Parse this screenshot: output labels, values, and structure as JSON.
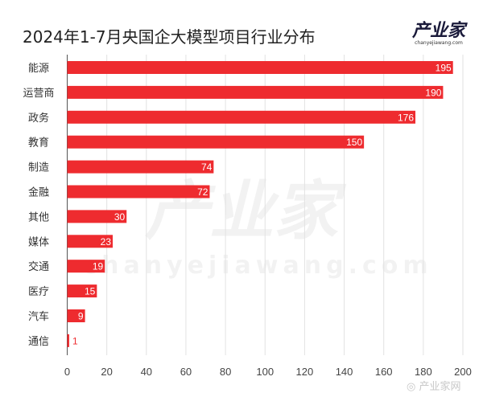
{
  "title": "2024年1-7月央国企大模型项目行业分布",
  "logo": {
    "main": "产业家",
    "sub": "chanyejiawang.com"
  },
  "watermark": {
    "main": "产业家",
    "sub": "chanyejiawang.com",
    "weibo": "产业家网"
  },
  "colors": {
    "bar": "#ee2b2f",
    "grid": "#e2e2e2",
    "label": "#333333"
  },
  "chart_data": {
    "type": "bar",
    "orientation": "horizontal",
    "title": "2024年1-7月央国企大模型项目行业分布",
    "categories": [
      "能源",
      "运营商",
      "政务",
      "教育",
      "制造",
      "金融",
      "其他",
      "媒体",
      "交通",
      "医疗",
      "汽车",
      "通信"
    ],
    "values": [
      195,
      190,
      176,
      150,
      74,
      72,
      30,
      23,
      19,
      15,
      9,
      1
    ],
    "xlim": [
      0,
      200
    ],
    "xticks": [
      0,
      20,
      40,
      60,
      80,
      100,
      120,
      140,
      160,
      180,
      200
    ],
    "grid": true,
    "xlabel": "",
    "ylabel": ""
  }
}
